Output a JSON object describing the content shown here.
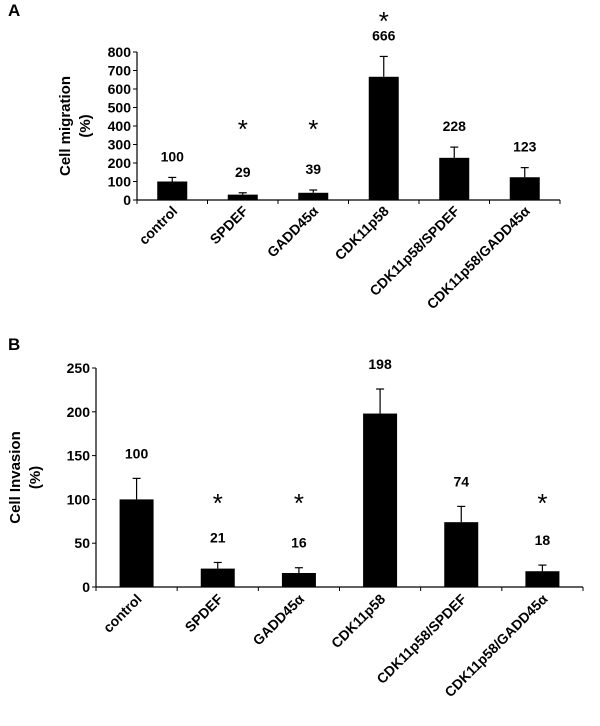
{
  "chart_data": [
    {
      "type": "bar",
      "panel_label": "A",
      "title": "",
      "xlabel": "",
      "ylabel_lines": [
        "Cell migration",
        "(%)"
      ],
      "ylim": [
        0,
        800
      ],
      "yticks": [
        0,
        100,
        200,
        300,
        400,
        500,
        600,
        700,
        800
      ],
      "categories": [
        "control",
        "SPDEF",
        "GADD45α",
        "CDK11p58",
        "CDK11p58/SPDEF",
        "CDK11p58/GADD45α"
      ],
      "values": [
        100,
        29,
        39,
        666,
        228,
        123
      ],
      "errors": [
        22,
        10,
        15,
        110,
        58,
        52
      ],
      "labels": [
        "100",
        "29",
        "39",
        "666",
        "228",
        "123"
      ],
      "significance": [
        "",
        "*",
        "*",
        "*",
        "",
        ""
      ],
      "grid": false
    },
    {
      "type": "bar",
      "panel_label": "B",
      "title": "",
      "xlabel": "",
      "ylabel_lines": [
        "Cell Invasion",
        "(%)"
      ],
      "ylim": [
        0,
        250
      ],
      "yticks": [
        0,
        50,
        100,
        150,
        200,
        250
      ],
      "categories": [
        "control",
        "SPDEF",
        "GADD45α",
        "CDK11p58",
        "CDK11p58/SPDEF",
        "CDK11p58/GADD45α"
      ],
      "values": [
        100,
        21,
        16,
        198,
        74,
        18
      ],
      "errors": [
        24,
        7,
        6,
        28,
        18,
        7
      ],
      "labels": [
        "100",
        "21",
        "16",
        "198",
        "74",
        "18"
      ],
      "significance": [
        "",
        "*",
        "*",
        "",
        "",
        "*"
      ],
      "grid": false
    }
  ]
}
